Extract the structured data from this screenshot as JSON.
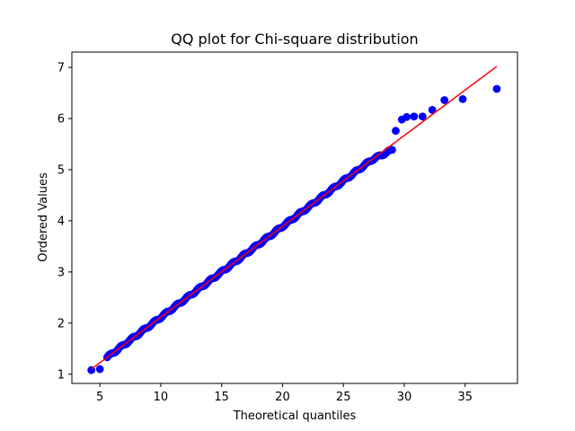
{
  "chart_data": {
    "type": "scatter",
    "title": "QQ plot for Chi-square distribution",
    "xlabel": "Theoretical quantiles",
    "ylabel": "Ordered Values",
    "xlim": [
      2.7,
      39.3
    ],
    "ylim": [
      0.82,
      7.3
    ],
    "xticks": [
      5,
      10,
      15,
      20,
      25,
      30,
      35
    ],
    "yticks": [
      1,
      2,
      3,
      4,
      5,
      6,
      7
    ],
    "grid": false,
    "points_color": "#0000ff",
    "fit_line": {
      "x": [
        4.3,
        37.6
      ],
      "y": [
        1.1,
        7.02
      ],
      "color": "#ff0000"
    },
    "outliers": [
      {
        "x": 4.3,
        "y": 1.08
      },
      {
        "x": 5.0,
        "y": 1.1
      },
      {
        "x": 29.3,
        "y": 5.76
      },
      {
        "x": 29.8,
        "y": 5.98
      },
      {
        "x": 30.2,
        "y": 6.03
      },
      {
        "x": 30.8,
        "y": 6.04
      },
      {
        "x": 31.5,
        "y": 6.04
      },
      {
        "x": 32.3,
        "y": 6.17
      },
      {
        "x": 33.3,
        "y": 6.36
      },
      {
        "x": 34.8,
        "y": 6.38
      },
      {
        "x": 37.6,
        "y": 6.58
      }
    ],
    "bulk": {
      "x_start": 5.6,
      "x_end": 29.0,
      "count": 230
    }
  }
}
